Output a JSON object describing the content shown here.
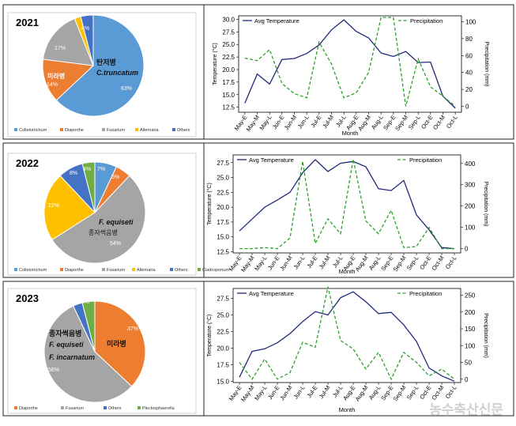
{
  "watermark": "농수축산신문",
  "colors": {
    "colletotrichum": "#5b9bd5",
    "diaporthe": "#ed7d31",
    "fusarium": "#a5a5a5",
    "alternaria": "#ffc000",
    "others": "#4472c4",
    "cladosporium": "#70ad47",
    "plectosphaerella": "#70ad47",
    "temp_line": "#1f2a7a",
    "precip_line": "#2ca02c"
  },
  "chart_data": [
    {
      "type": "pie",
      "title": "2021",
      "labels": [
        "Colletotrichum",
        "Diaporthe",
        "Fusarium",
        "Alternaria",
        "Others"
      ],
      "values": [
        63,
        14,
        17,
        2,
        4
      ],
      "value_labels": [
        "63%",
        "14%",
        "17%",
        "",
        "4%"
      ],
      "annotations": [
        {
          "text": "탄저병",
          "italic": false
        },
        {
          "text": "C.truncatum",
          "italic": true
        },
        {
          "text": "미라병",
          "italic": false
        }
      ],
      "legend": "bottom"
    },
    {
      "type": "line",
      "x": [
        "May-E",
        "May-M",
        "May-L",
        "Jun-E",
        "Jun-M",
        "Jun-L",
        "Jul-E",
        "Jul-M",
        "Jul-L",
        "Aug-E",
        "Aug-M",
        "Aug-L",
        "Sep-E",
        "Sep-M",
        "Sep-L",
        "Oct-E",
        "Oct-M",
        "Oct-L"
      ],
      "xlabel": "Month",
      "ylabel": "Temperature (°C)",
      "y2label": "Precipitation (mm)",
      "ylim": [
        11.5,
        30.7
      ],
      "y2lim": [
        -7,
        107
      ],
      "yticks": [
        12.5,
        15.0,
        17.5,
        20.0,
        22.5,
        25.0,
        27.5,
        30.0
      ],
      "y2ticks": [
        0,
        20,
        40,
        60,
        80,
        100
      ],
      "series": [
        {
          "name": "Avg Temperature",
          "axis": "left",
          "style": "solid",
          "values": [
            13.3,
            19.1,
            17.1,
            22.0,
            22.2,
            23.2,
            24.9,
            27.9,
            29.9,
            27.6,
            26.3,
            23.3,
            22.6,
            23.6,
            21.4,
            21.5,
            14.7,
            12.3
          ]
        },
        {
          "name": "Precipitation",
          "axis": "right",
          "style": "dashed",
          "values": [
            57,
            54,
            67,
            27,
            15,
            10,
            76,
            50,
            10,
            16,
            40,
            105,
            105,
            0,
            56,
            23,
            12,
            0
          ]
        }
      ],
      "legend": "top"
    },
    {
      "type": "pie",
      "title": "2022",
      "labels": [
        "Colletotrichum",
        "Diaporthe",
        "Fusarium",
        "Alternaria",
        "Others",
        "Cladosporium"
      ],
      "values": [
        7,
        5,
        54,
        22,
        8,
        4
      ],
      "value_labels": [
        "7%",
        "5%",
        "54%",
        "22%",
        "8%",
        "4%"
      ],
      "annotations": [
        {
          "text": "F. equiseti",
          "italic": true
        },
        {
          "text": "종자썩음병",
          "italic": false
        }
      ],
      "legend": "bottom"
    },
    {
      "type": "line",
      "x": [
        "May-E",
        "May-M",
        "May-L",
        "Jun-E",
        "Jun-M",
        "Jun-L",
        "Jul-E",
        "Jul-M",
        "Jul-L",
        "Aug-E",
        "Aug-M",
        "Aug-L",
        "Sep-E",
        "Sep-M",
        "Sep-L",
        "Oct-E",
        "Oct-M",
        "Oct-L"
      ],
      "xlabel": "Month",
      "ylabel": "Temperature (°C)",
      "y2label": "Precipitation (mm)",
      "ylim": [
        12.3,
        28.8
      ],
      "y2lim": [
        -20,
        440
      ],
      "yticks": [
        12.5,
        15.0,
        17.5,
        20.0,
        22.5,
        25.0,
        27.5
      ],
      "y2ticks": [
        0,
        100,
        200,
        300,
        400
      ],
      "series": [
        {
          "name": "Avg Temperature",
          "axis": "left",
          "style": "solid",
          "values": [
            16.0,
            18.0,
            20.0,
            21.2,
            22.5,
            25.8,
            28.0,
            26.0,
            27.4,
            27.7,
            26.8,
            23.1,
            22.8,
            24.5,
            18.7,
            16.2,
            13.2,
            13.0
          ]
        },
        {
          "name": "Precipitation",
          "axis": "right",
          "style": "dashed",
          "values": [
            0,
            0,
            5,
            0,
            50,
            410,
            25,
            140,
            70,
            420,
            130,
            70,
            180,
            5,
            10,
            100,
            0,
            0
          ]
        }
      ],
      "legend": "top"
    },
    {
      "type": "pie",
      "title": "2023",
      "labels": [
        "Diaporthe",
        "Fusarium",
        "Others",
        "Plectosphaerella"
      ],
      "values": [
        37,
        56,
        3,
        4
      ],
      "value_labels": [
        "37%",
        "56%",
        "",
        "4%"
      ],
      "annotations": [
        {
          "text": "종자썩음병",
          "italic": false
        },
        {
          "text": "F. equiseti",
          "italic": true
        },
        {
          "text": "F. incarnatum",
          "italic": true
        },
        {
          "text": "미라병",
          "italic": false
        }
      ],
      "legend": "bottom"
    },
    {
      "type": "line",
      "x": [
        "May-E",
        "May-M",
        "May-L",
        "Jun-E",
        "Jun-M",
        "Jun-L",
        "Jul-E",
        "Jul-M",
        "Jul-L",
        "Aug-E",
        "Aug-M",
        "Aug-L",
        "Sep-E",
        "Sep-M",
        "Sep-L",
        "Oct-E",
        "Oct-M",
        "Oct-L"
      ],
      "xlabel": "Month",
      "ylabel": "Temperature (°C)",
      "y2label": "Precipitation (mm)",
      "ylim": [
        14.8,
        29.0
      ],
      "y2lim": [
        -10,
        270
      ],
      "yticks": [
        15.0,
        17.5,
        20.0,
        22.5,
        25.0,
        27.5
      ],
      "y2ticks": [
        0,
        50,
        100,
        150,
        200,
        250
      ],
      "series": [
        {
          "name": "Avg Temperature",
          "axis": "left",
          "style": "solid",
          "values": [
            15.6,
            19.5,
            19.9,
            20.8,
            22.2,
            24.0,
            25.5,
            25.0,
            27.6,
            28.5,
            27.0,
            25.2,
            25.4,
            23.5,
            21.0,
            17.0,
            15.8,
            15.0
          ]
        },
        {
          "name": "Precipitation",
          "axis": "right",
          "style": "dashed",
          "values": [
            50,
            0,
            60,
            0,
            20,
            110,
            95,
            275,
            115,
            90,
            30,
            80,
            0,
            80,
            50,
            10,
            30,
            0
          ]
        }
      ],
      "legend": "top"
    }
  ]
}
